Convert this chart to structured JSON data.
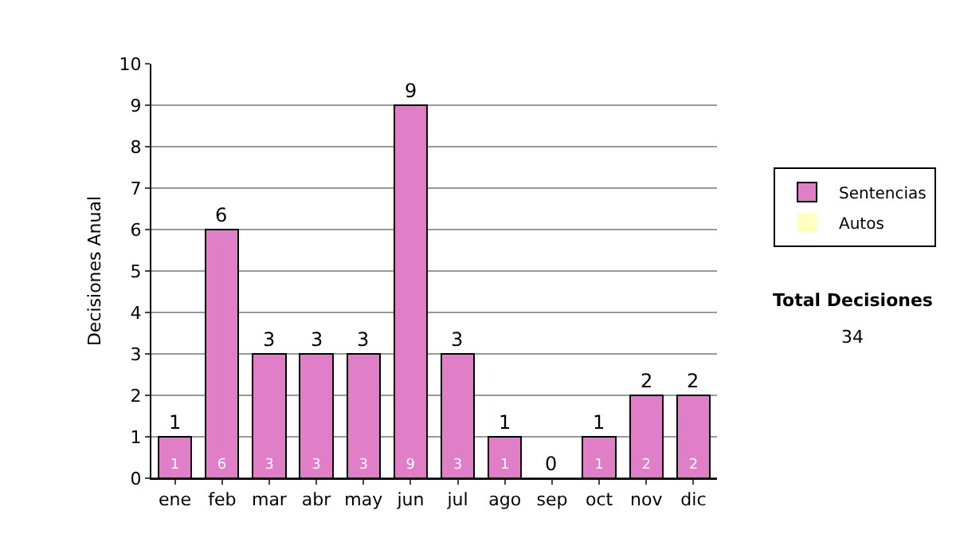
{
  "chart_data": {
    "type": "bar",
    "ylabel": "Decisiones Anual",
    "categories": [
      "ene",
      "feb",
      "mar",
      "abr",
      "may",
      "jun",
      "jul",
      "ago",
      "sep",
      "oct",
      "nov",
      "dic"
    ],
    "series": [
      {
        "name": "Sentencias",
        "color": "#e07fc8",
        "values": [
          1,
          6,
          3,
          3,
          3,
          9,
          3,
          1,
          0,
          1,
          2,
          2
        ],
        "value_labels": [
          "1",
          "6",
          "3",
          "3",
          "3",
          "9",
          "3",
          "1",
          null,
          "1",
          "2",
          "2"
        ]
      },
      {
        "name": "Autos",
        "color": "#ffffc0",
        "values": [
          0,
          0,
          0,
          0,
          0,
          0,
          0,
          0,
          0,
          0,
          0,
          0
        ]
      }
    ],
    "stacked": true,
    "totals": [
      "1",
      "6",
      "3",
      "3",
      "3",
      "9",
      "3",
      "1",
      "0",
      "1",
      "2",
      "2"
    ],
    "ylim": [
      0,
      10
    ],
    "yticks": [
      0,
      1,
      2,
      3,
      4,
      5,
      6,
      7,
      8,
      9,
      10
    ],
    "grid": "y",
    "legend": "right",
    "annotations": [
      "Total Decisiones",
      "34"
    ]
  }
}
